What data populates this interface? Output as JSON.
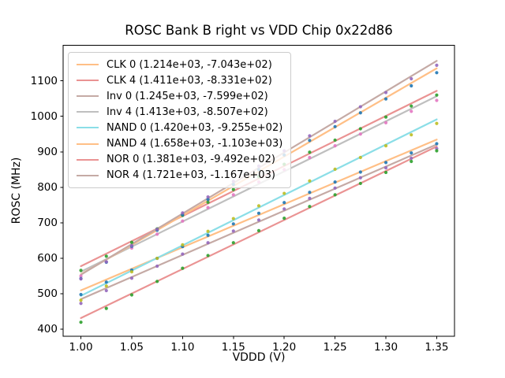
{
  "chart_data": {
    "type": "scatter",
    "title": "ROSC Bank B right vs VDD Chip 0x22d86",
    "xlabel": "VDDD (V)",
    "ylabel": "ROSC (MHz)",
    "xlim": [
      0.9825,
      1.3675
    ],
    "ylim": [
      380,
      1200
    ],
    "xtick_values": [
      1.0,
      1.05,
      1.1,
      1.15,
      1.2,
      1.25,
      1.3,
      1.35
    ],
    "xtick_labels": [
      "1.00",
      "1.05",
      "1.10",
      "1.15",
      "1.20",
      "1.25",
      "1.30",
      "1.35"
    ],
    "ytick_values": [
      400,
      500,
      600,
      700,
      800,
      900,
      1000,
      1100
    ],
    "ytick_labels": [
      "400",
      "500",
      "600",
      "700",
      "800",
      "900",
      "1000",
      "1100"
    ],
    "grid": false,
    "legend_position": "upper left",
    "x": [
      1.0,
      1.025,
      1.05,
      1.075,
      1.1,
      1.125,
      1.15,
      1.175,
      1.2,
      1.225,
      1.25,
      1.275,
      1.3,
      1.325,
      1.35
    ],
    "series": [
      {
        "name": "CLK 0",
        "label": "CLK 0 (1.214e+03, -7.043e+02)",
        "fit_slope": 1214.0,
        "fit_intercept": -704.3,
        "line_color": "#ffbf86",
        "point_color": "#1f77b4",
        "points": [
          498,
          533,
          567,
          600,
          633,
          665,
          697,
          727,
          757,
          786,
          815,
          843,
          870,
          897,
          923
        ]
      },
      {
        "name": "CLK 4",
        "label": "CLK 4 (1.411e+03, -8.331e+02)",
        "fit_slope": 1411.0,
        "fit_intercept": -833.1,
        "line_color": "#ea9393",
        "point_color": "#2ca02c",
        "points": [
          566,
          606,
          645,
          683,
          721,
          758,
          794,
          830,
          865,
          899,
          933,
          965,
          998,
          1029,
          1060
        ]
      },
      {
        "name": "Inv 0",
        "label": "Inv 0 (1.245e+03, -7.599e+02)",
        "fit_slope": 1245.0,
        "fit_intercept": -759.9,
        "line_color": "#c5aaa5",
        "point_color": "#9467bd",
        "points": [
          473,
          509,
          544,
          578,
          612,
          644,
          677,
          708,
          739,
          769,
          798,
          827,
          855,
          882,
          909
        ]
      },
      {
        "name": "Inv 4",
        "label": "Inv 4 (1.413e+03, -8.507e+02)",
        "fit_slope": 1413.0,
        "fit_intercept": -850.7,
        "line_color": "#bfbfbf",
        "point_color": "#e377c2",
        "points": [
          550,
          590,
          629,
          668,
          705,
          743,
          779,
          815,
          850,
          884,
          917,
          950,
          982,
          1014,
          1045
        ]
      },
      {
        "name": "NAND 0",
        "label": "NAND 0 (1.420e+03, -9.255e+02)",
        "fit_slope": 1420.0,
        "fit_intercept": -925.5,
        "line_color": "#8bdee7",
        "point_color": "#bcbd22",
        "points": [
          482,
          522,
          562,
          600,
          638,
          676,
          712,
          748,
          783,
          818,
          851,
          884,
          917,
          948,
          980
        ]
      },
      {
        "name": "NAND 4",
        "label": "NAND 4 (1.658e+03, -1.103e+03)",
        "fit_slope": 1658.0,
        "fit_intercept": -1103.0,
        "line_color": "#ffbf86",
        "point_color": "#1f77b4",
        "points": [
          543,
          589,
          634,
          679,
          723,
          766,
          808,
          850,
          891,
          932,
          971,
          1010,
          1049,
          1086,
          1123
        ]
      },
      {
        "name": "NOR 0",
        "label": "NOR 0 (1.381e+03, -9.492e+02)",
        "fit_slope": 1381.0,
        "fit_intercept": -949.2,
        "line_color": "#ea9393",
        "point_color": "#2ca02c",
        "points": [
          420,
          459,
          497,
          535,
          572,
          608,
          644,
          678,
          713,
          746,
          779,
          811,
          842,
          873,
          903
        ]
      },
      {
        "name": "NOR 4",
        "label": "NOR 4 (1.721e+03, -1.167e+03)",
        "fit_slope": 1721.0,
        "fit_intercept": -1167.0,
        "line_color": "#c5aaa5",
        "point_color": "#9467bd",
        "points": [
          542,
          590,
          636,
          682,
          728,
          773,
          817,
          860,
          903,
          945,
          986,
          1027,
          1067,
          1106,
          1144
        ]
      }
    ],
    "style": {
      "spine_color": "#000000",
      "tick_color": "#000000",
      "background": "#ffffff",
      "legend_background": "rgba(255,255,255,0.8)",
      "legend_border": "#cccccc"
    }
  }
}
